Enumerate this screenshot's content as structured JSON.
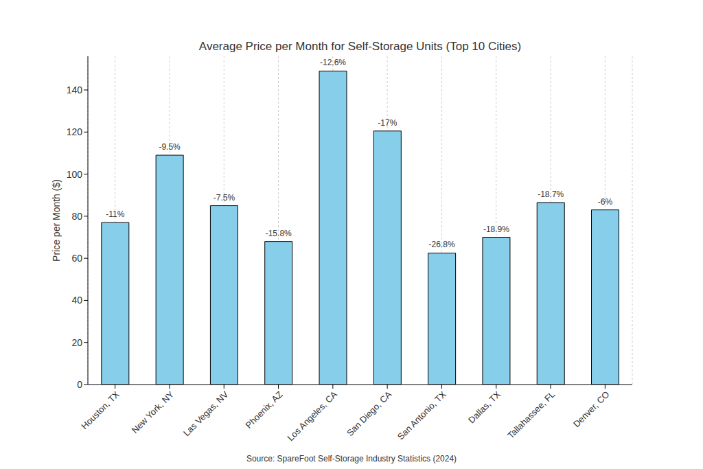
{
  "chart_data": {
    "type": "bar",
    "title": "Average Price per Month for Self-Storage Units (Top 10 Cities)",
    "y_label": "Price per Month ($)",
    "source": "Source: SpareFoot Self-Storage Industry Statistics (2024)",
    "categories": [
      "Houston, TX",
      "New York, NY",
      "Las Vegas, NV",
      "Phoenix, AZ",
      "Los Angeles, CA",
      "San Diego, CA",
      "San Antonio, TX",
      "Dallas, TX",
      "Tallahassee, FL",
      "Denver, CO"
    ],
    "values": [
      77,
      109,
      85,
      68,
      149,
      120.5,
      62.5,
      70,
      86.5,
      83
    ],
    "annotations": [
      "-11%",
      "-9.5%",
      "-7.5%",
      "-15.8%",
      "-12.6%",
      "-17%",
      "-26.8%",
      "-18.9%",
      "-18.7%",
      "-6%"
    ],
    "color": "#87ceeb",
    "ylim": [
      0,
      156
    ],
    "yticks": [
      0,
      20,
      40,
      60,
      80,
      100,
      120,
      140
    ],
    "grid": true
  }
}
